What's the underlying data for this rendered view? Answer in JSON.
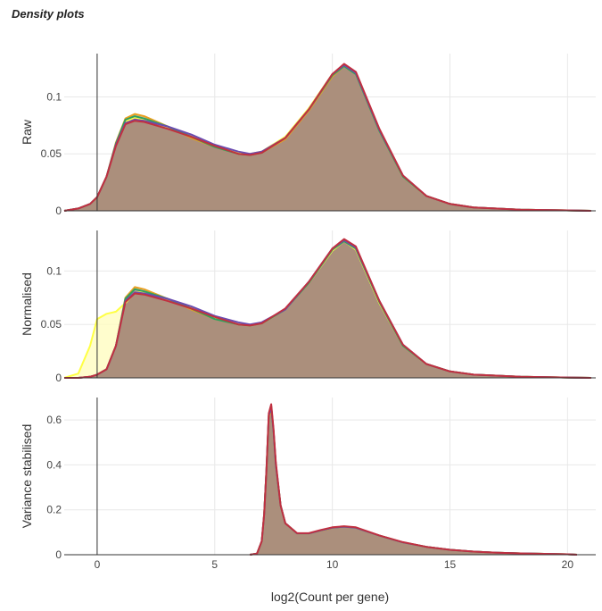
{
  "title": "Density plots",
  "chart_data": {
    "type": "area",
    "xlabel": "log2(Count per gene)",
    "xlim": [
      -1.4,
      21.2
    ],
    "xticks": [
      0,
      5,
      10,
      15,
      20
    ],
    "grid": true,
    "colors": {
      "fill": "#a88a78",
      "series": [
        "#ffff44",
        "#e8a020",
        "#30a060",
        "#6b4cb0",
        "#c03040"
      ]
    },
    "panels": [
      {
        "ylabel": "Raw",
        "ylim": [
          0,
          0.138
        ],
        "yticks": [
          0,
          0.05,
          0.1
        ],
        "ytick_labels": [
          "0",
          "0.05",
          "0.1"
        ],
        "x": [
          -1.4,
          -0.8,
          -0.3,
          0,
          0.4,
          0.8,
          1.2,
          1.6,
          2,
          3,
          4,
          5,
          6,
          6.5,
          7,
          8,
          9,
          10,
          10.5,
          11,
          12,
          13,
          14,
          15,
          16,
          18,
          21
        ],
        "series": [
          {
            "values": [
              0,
              0.002,
              0.006,
              0.012,
              0.03,
              0.058,
              0.078,
              0.082,
              0.08,
              0.073,
              0.065,
              0.057,
              0.051,
              0.05,
              0.052,
              0.065,
              0.09,
              0.12,
              0.128,
              0.12,
              0.07,
              0.03,
              0.013,
              0.006,
              0.003,
              0.001,
              0
            ]
          },
          {
            "values": [
              0,
              0.002,
              0.006,
              0.012,
              0.03,
              0.06,
              0.081,
              0.085,
              0.083,
              0.074,
              0.064,
              0.056,
              0.05,
              0.049,
              0.051,
              0.063,
              0.088,
              0.118,
              0.127,
              0.12,
              0.07,
              0.03,
              0.013,
              0.006,
              0.003,
              0.001,
              0
            ]
          },
          {
            "values": [
              0,
              0.002,
              0.006,
              0.012,
              0.03,
              0.059,
              0.08,
              0.083,
              0.081,
              0.074,
              0.065,
              0.056,
              0.05,
              0.049,
              0.051,
              0.064,
              0.089,
              0.119,
              0.127,
              0.12,
              0.07,
              0.03,
              0.013,
              0.006,
              0.003,
              0.001,
              0
            ]
          },
          {
            "values": [
              0,
              0.002,
              0.006,
              0.012,
              0.03,
              0.058,
              0.077,
              0.08,
              0.079,
              0.074,
              0.067,
              0.058,
              0.052,
              0.05,
              0.052,
              0.064,
              0.089,
              0.12,
              0.128,
              0.121,
              0.071,
              0.031,
              0.013,
              0.006,
              0.003,
              0.001,
              0
            ]
          },
          {
            "values": [
              0,
              0.002,
              0.006,
              0.012,
              0.03,
              0.057,
              0.076,
              0.079,
              0.078,
              0.072,
              0.065,
              0.057,
              0.05,
              0.049,
              0.051,
              0.064,
              0.089,
              0.12,
              0.129,
              0.122,
              0.072,
              0.031,
              0.013,
              0.006,
              0.003,
              0.001,
              0
            ]
          }
        ]
      },
      {
        "ylabel": "Normalised",
        "ylim": [
          0,
          0.138
        ],
        "yticks": [
          0,
          0.05,
          0.1
        ],
        "ytick_labels": [
          "0",
          "0.05",
          "0.1"
        ],
        "x": [
          -1.4,
          -0.8,
          -0.3,
          0,
          0.4,
          0.8,
          1.2,
          1.6,
          2,
          3,
          4,
          5,
          6,
          6.5,
          7,
          8,
          9,
          10,
          10.5,
          11,
          12,
          13,
          14,
          15,
          16,
          18,
          21
        ],
        "series": [
          {
            "values": [
              0,
              0.004,
              0.03,
              0.055,
              0.06,
              0.062,
              0.07,
              0.08,
              0.08,
              0.073,
              0.066,
              0.056,
              0.05,
              0.049,
              0.051,
              0.064,
              0.089,
              0.119,
              0.128,
              0.12,
              0.07,
              0.03,
              0.013,
              0.006,
              0.003,
              0.001,
              0
            ]
          },
          {
            "values": [
              0,
              0,
              0.001,
              0.003,
              0.008,
              0.03,
              0.075,
              0.085,
              0.083,
              0.074,
              0.064,
              0.055,
              0.05,
              0.049,
              0.051,
              0.064,
              0.089,
              0.12,
              0.128,
              0.121,
              0.071,
              0.03,
              0.013,
              0.006,
              0.003,
              0.001,
              0
            ]
          },
          {
            "values": [
              0,
              0,
              0.001,
              0.003,
              0.008,
              0.03,
              0.074,
              0.083,
              0.081,
              0.074,
              0.065,
              0.055,
              0.05,
              0.049,
              0.051,
              0.064,
              0.089,
              0.12,
              0.128,
              0.121,
              0.071,
              0.03,
              0.013,
              0.006,
              0.003,
              0.001,
              0
            ]
          },
          {
            "values": [
              0,
              0,
              0.001,
              0.003,
              0.008,
              0.03,
              0.072,
              0.08,
              0.079,
              0.074,
              0.067,
              0.058,
              0.052,
              0.05,
              0.052,
              0.064,
              0.09,
              0.121,
              0.129,
              0.122,
              0.072,
              0.031,
              0.013,
              0.006,
              0.003,
              0.001,
              0
            ]
          },
          {
            "values": [
              0,
              0,
              0.001,
              0.003,
              0.008,
              0.03,
              0.071,
              0.079,
              0.078,
              0.072,
              0.065,
              0.057,
              0.05,
              0.049,
              0.051,
              0.065,
              0.09,
              0.121,
              0.13,
              0.123,
              0.072,
              0.031,
              0.013,
              0.006,
              0.003,
              0.001,
              0
            ]
          }
        ]
      },
      {
        "ylabel": "Variance stabilised",
        "ylim": [
          0,
          0.7
        ],
        "yticks": [
          0,
          0.2,
          0.4,
          0.6
        ],
        "ytick_labels": [
          "0",
          "0.2",
          "0.4",
          "0.6"
        ],
        "x": [
          6.5,
          6.8,
          7,
          7.1,
          7.2,
          7.3,
          7.4,
          7.5,
          7.6,
          7.8,
          8,
          8.5,
          9,
          9.5,
          10,
          10.5,
          11,
          12,
          13,
          14,
          15,
          16,
          17,
          18,
          19,
          20,
          20.4
        ],
        "series": [
          {
            "values": [
              0,
              0.005,
              0.06,
              0.18,
              0.38,
              0.62,
              0.66,
              0.55,
              0.4,
              0.22,
              0.14,
              0.095,
              0.095,
              0.108,
              0.12,
              0.125,
              0.12,
              0.085,
              0.055,
              0.035,
              0.022,
              0.014,
              0.009,
              0.006,
              0.004,
              0.002,
              0
            ]
          },
          {
            "values": [
              0,
              0.005,
              0.06,
              0.18,
              0.38,
              0.61,
              0.65,
              0.55,
              0.4,
              0.22,
              0.14,
              0.095,
              0.095,
              0.107,
              0.119,
              0.124,
              0.12,
              0.085,
              0.055,
              0.035,
              0.022,
              0.014,
              0.009,
              0.006,
              0.004,
              0.002,
              0
            ]
          },
          {
            "values": [
              0,
              0.005,
              0.06,
              0.18,
              0.38,
              0.62,
              0.66,
              0.55,
              0.4,
              0.22,
              0.14,
              0.095,
              0.095,
              0.108,
              0.12,
              0.125,
              0.12,
              0.085,
              0.055,
              0.035,
              0.022,
              0.014,
              0.009,
              0.006,
              0.004,
              0.002,
              0
            ]
          },
          {
            "values": [
              0,
              0.005,
              0.06,
              0.18,
              0.38,
              0.62,
              0.66,
              0.55,
              0.4,
              0.22,
              0.14,
              0.095,
              0.095,
              0.108,
              0.12,
              0.125,
              0.12,
              0.085,
              0.055,
              0.035,
              0.022,
              0.014,
              0.009,
              0.006,
              0.004,
              0.002,
              0
            ]
          },
          {
            "values": [
              0,
              0.005,
              0.06,
              0.18,
              0.38,
              0.63,
              0.67,
              0.56,
              0.41,
              0.22,
              0.14,
              0.096,
              0.096,
              0.11,
              0.122,
              0.127,
              0.122,
              0.086,
              0.056,
              0.035,
              0.022,
              0.014,
              0.009,
              0.006,
              0.004,
              0.002,
              0
            ]
          }
        ]
      }
    ]
  }
}
